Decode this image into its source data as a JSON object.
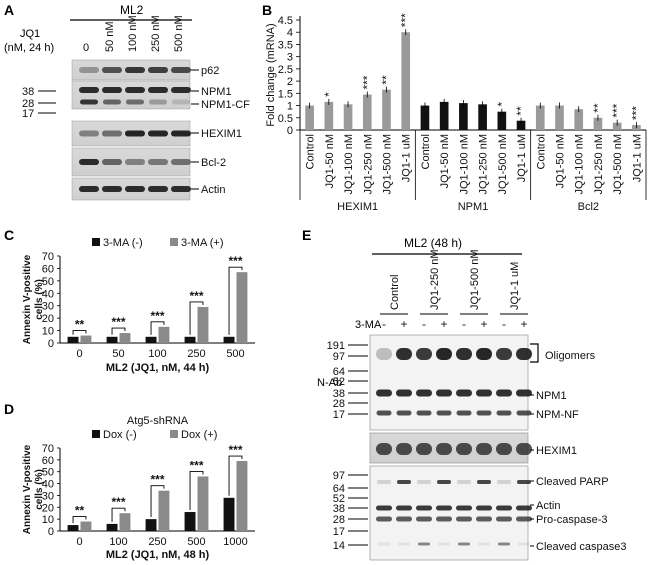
{
  "panels": {
    "A": {
      "label": "A",
      "cell_line": "ML2",
      "treatment_label_1": "JQ1",
      "treatment_label_2": "(nM, 24 h)",
      "doses": [
        "0",
        "50 nM",
        "100 nM",
        "250 nM",
        "500 nM"
      ],
      "mw_markers": [
        "38",
        "28",
        "17"
      ],
      "blots": [
        "p62",
        "NPM1",
        "NPM1-CF",
        "HEXIM1",
        "Bcl-2",
        "Actin"
      ]
    },
    "B": {
      "label": "B",
      "chart_data": {
        "type": "bar",
        "ylabel": "Fold change (mRNA)",
        "ylim": [
          0,
          4.5
        ],
        "yticks": [
          "0",
          "0.5",
          "1",
          "1.5",
          "2",
          "2.5",
          "3",
          "3.5",
          "4",
          "4.5"
        ],
        "groups": [
          {
            "name": "HEXIM1",
            "color": "#9a9a9a",
            "categories": [
              "Control",
              "JQ1-50 nM",
              "JQ1-100 nM",
              "JQ1-250 nM",
              "JQ1-500 nM",
              "JQ1-1 uM"
            ],
            "values": [
              1.0,
              1.15,
              1.05,
              1.45,
              1.65,
              4.0
            ],
            "stars": [
              "",
              "*",
              "",
              "***",
              "**",
              "***"
            ]
          },
          {
            "name": "NPM1",
            "color": "#111111",
            "categories": [
              "Control",
              "JQ1-50 nM",
              "JQ1-100 nM",
              "JQ1-250 nM",
              "JQ1-500 nM",
              "JQ1-1 uM"
            ],
            "values": [
              1.0,
              1.15,
              1.1,
              1.05,
              0.75,
              0.38
            ],
            "stars": [
              "",
              "",
              "",
              "",
              "*",
              "**"
            ]
          },
          {
            "name": "Bcl2",
            "color": "#9a9a9a",
            "categories": [
              "Control",
              "JQ1-50 nM",
              "JQ1-100 nM",
              "JQ1-250 nM",
              "JQ1-500 nM",
              "JQ1-1 uM"
            ],
            "values": [
              1.0,
              1.0,
              0.85,
              0.5,
              0.3,
              0.2
            ],
            "stars": [
              "",
              "",
              "",
              "**",
              "***",
              "***"
            ]
          }
        ]
      }
    },
    "C": {
      "label": "C",
      "chart_data": {
        "type": "bar",
        "ylabel_1": "Annexin V-positive",
        "ylabel_2": "cells (%)",
        "xlabel": "ML2 (JQ1, nM, 44 h)",
        "ylim": [
          0,
          70
        ],
        "yticks": [
          "0",
          "10",
          "20",
          "30",
          "40",
          "50",
          "60",
          "70"
        ],
        "categories": [
          "0",
          "50",
          "100",
          "250",
          "500"
        ],
        "series": [
          {
            "name": "3-MA (-)",
            "color": "#111111",
            "values": [
              5,
              5,
              5,
              5,
              5
            ]
          },
          {
            "name": "3-MA (+)",
            "color": "#8a8a8a",
            "values": [
              6,
              8,
              13,
              29,
              57
            ]
          }
        ],
        "stars": [
          "**",
          "***",
          "***",
          "***",
          "***"
        ]
      }
    },
    "D": {
      "label": "D",
      "chart_data": {
        "type": "bar",
        "title": "Atg5-shRNA",
        "ylabel_1": "Annexin V-positive",
        "ylabel_2": "cells (%)",
        "xlabel": "ML2 (JQ1, nM, 48 h)",
        "ylim": [
          0,
          70
        ],
        "yticks": [
          "0",
          "10",
          "20",
          "30",
          "40",
          "50",
          "60",
          "70"
        ],
        "categories": [
          "0",
          "100",
          "250",
          "500",
          "1000"
        ],
        "series": [
          {
            "name": "Dox (-)",
            "color": "#111111",
            "values": [
              5,
              6,
              10,
              16,
              28
            ]
          },
          {
            "name": "Dox (+)",
            "color": "#8a8a8a",
            "values": [
              8,
              15,
              34,
              46,
              59
            ]
          }
        ],
        "stars": [
          "**",
          "***",
          "***",
          "***",
          "***"
        ]
      }
    },
    "E": {
      "label": "E",
      "cell_line": "ML2 (48 h)",
      "conditions": [
        "Control",
        "JQ1-250 nM",
        "JQ1-500 nM",
        "JQ1-1 uM"
      ],
      "treatment": "3-MA",
      "signs": [
        "-",
        "+",
        "-",
        "+",
        "-",
        "+",
        "-",
        "+"
      ],
      "antibody": "N-Ab",
      "mw_top": [
        "191",
        "97",
        "64",
        "52",
        "38",
        "28",
        "17"
      ],
      "mw_bottom": [
        "97",
        "64",
        "52",
        "38",
        "28",
        "17",
        "14"
      ],
      "bands": [
        "Oligomers",
        "NPM1",
        "NPM-NF",
        "HEXIM1",
        "Cleaved PARP",
        "Actin",
        "Pro-caspase-3",
        "Cleaved caspase3"
      ]
    }
  }
}
